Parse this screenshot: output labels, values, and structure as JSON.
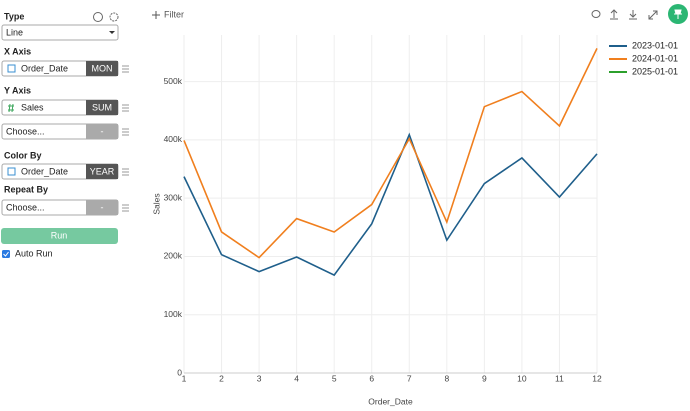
{
  "sidebar": {
    "type": {
      "label": "Type",
      "value": "Line"
    },
    "x_axis": {
      "label": "X Axis",
      "field": "Order_Date",
      "agg": "MON"
    },
    "y_axis": {
      "label": "Y Axis",
      "field": "Sales",
      "agg": "SUM",
      "extra": "Choose...",
      "extra_agg": "-"
    },
    "color_by": {
      "label": "Color By",
      "field": "Order_Date",
      "agg": "YEAR"
    },
    "repeat_by": {
      "label": "Repeat By",
      "field": "Choose...",
      "agg": "-"
    },
    "run": "Run",
    "auto_run": "Auto Run"
  },
  "toolbar": {
    "filter": "Filter"
  },
  "chart_data": {
    "type": "line",
    "x_label": "Order_Date",
    "y_label": "Sales",
    "x": [
      1,
      2,
      3,
      4,
      5,
      6,
      7,
      8,
      9,
      10,
      11,
      12
    ],
    "series": [
      {
        "name": "2023-01-01",
        "color": "#1f5f8b",
        "values": [
          337000,
          203000,
          174000,
          199000,
          168000,
          256000,
          409000,
          228000,
          325000,
          369000,
          302000,
          376000
        ]
      },
      {
        "name": "2024-01-01",
        "color": "#f07f1e",
        "values": [
          399000,
          242000,
          198000,
          265000,
          242000,
          289000,
          402000,
          259000,
          457000,
          483000,
          424000,
          557000
        ]
      },
      {
        "name": "2025-01-01",
        "color": "#2ca02c",
        "values": [
          null,
          null,
          null,
          null,
          null,
          null,
          null,
          null,
          null,
          null,
          null,
          null
        ]
      }
    ],
    "xlim": [
      1,
      12
    ],
    "xticks": [
      1,
      2,
      3,
      4,
      5,
      6,
      7,
      8,
      9,
      10,
      11,
      12
    ],
    "ylim": [
      0,
      580000
    ],
    "yticks": [
      0,
      {
        "value": 100000,
        "label": "100k"
      },
      {
        "value": 200000,
        "label": "200k"
      },
      {
        "value": 300000,
        "label": "300k"
      },
      {
        "value": 400000,
        "label": "400k"
      },
      {
        "value": 500000,
        "label": "500k"
      }
    ],
    "grid": true,
    "legend": "right"
  }
}
